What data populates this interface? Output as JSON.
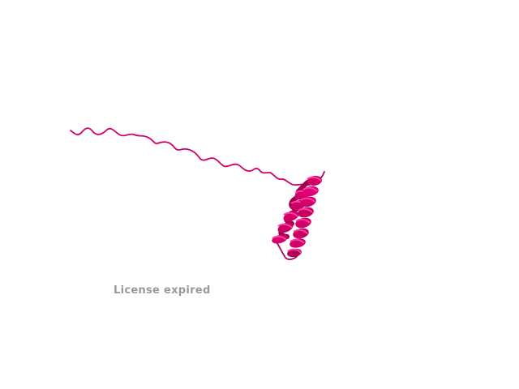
{
  "viewer": {
    "watermark_text": "License expired",
    "background_color": "#ffffff",
    "watermark_color": "#9a9a9a"
  },
  "structure": {
    "representation": "cartoon",
    "color": "#d4006a",
    "color_dark": "#9e0050",
    "color_light": "#ff3d9a",
    "elements": [
      "random-coil",
      "alpha-helix"
    ]
  }
}
